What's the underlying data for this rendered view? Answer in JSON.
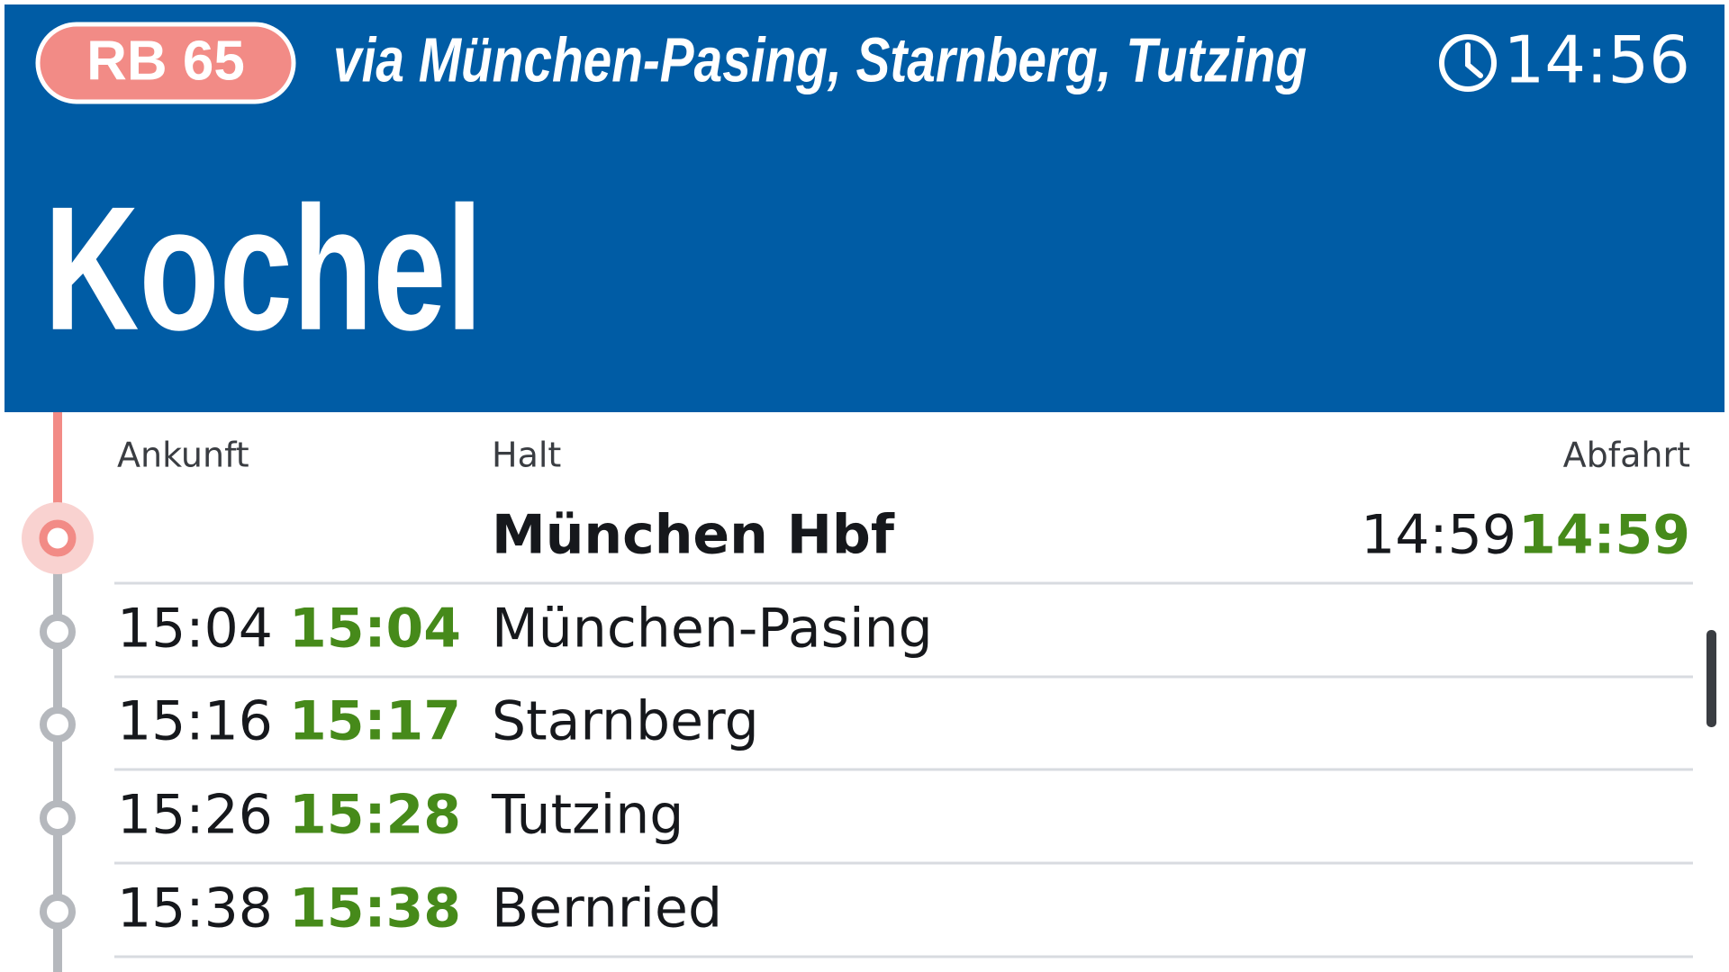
{
  "header": {
    "line": "RB 65",
    "via": "via München-Pasing, Starnberg, Tutzing",
    "time": "14:56",
    "destination": "Kochel"
  },
  "columns": {
    "arrival": "Ankunft",
    "stop": "Halt",
    "departure": "Abfahrt"
  },
  "stops": [
    {
      "name": "München Hbf",
      "scheduled_departure": "14:59",
      "actual_departure": "14:59"
    },
    {
      "name": "München-Pasing",
      "scheduled_arrival": "15:04",
      "actual_arrival": "15:04"
    },
    {
      "name": "Starnberg",
      "scheduled_arrival": "15:16",
      "actual_arrival": "15:17"
    },
    {
      "name": "Tutzing",
      "scheduled_arrival": "15:26",
      "actual_arrival": "15:28"
    },
    {
      "name": "Bernried",
      "scheduled_arrival": "15:38",
      "actual_arrival": "15:38"
    }
  ]
}
